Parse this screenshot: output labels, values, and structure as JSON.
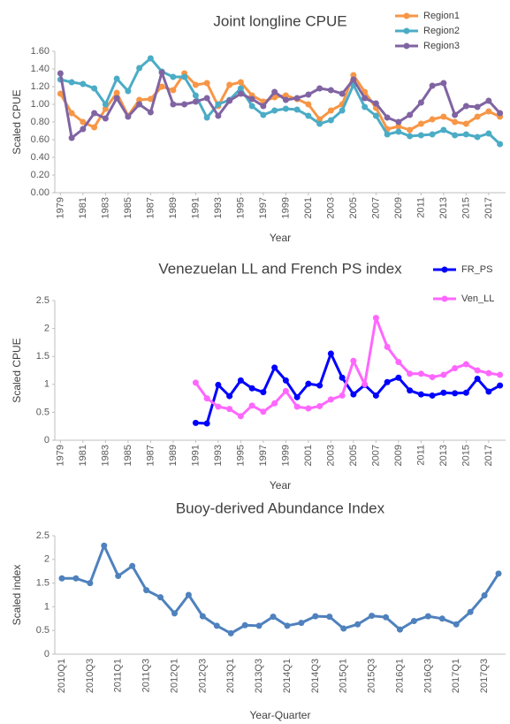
{
  "chart_data": [
    {
      "type": "line",
      "title": "Joint longline CPUE",
      "x_label": "Year",
      "y_label": "Scaled CPUE",
      "x": [
        1979,
        1980,
        1981,
        1982,
        1983,
        1984,
        1985,
        1986,
        1987,
        1988,
        1989,
        1990,
        1991,
        1992,
        1993,
        1994,
        1995,
        1996,
        1997,
        1998,
        1999,
        2000,
        2001,
        2002,
        2003,
        2004,
        2005,
        2006,
        2007,
        2008,
        2009,
        2010,
        2011,
        2012,
        2013,
        2014,
        2015,
        2016,
        2017,
        2018
      ],
      "xlim": [
        1978.5,
        2018.5
      ],
      "xticks": [
        1979,
        1981,
        1983,
        1985,
        1987,
        1989,
        1991,
        1993,
        1995,
        1997,
        1999,
        2001,
        2003,
        2005,
        2007,
        2009,
        2011,
        2013,
        2015,
        2017
      ],
      "ylim": [
        0,
        1.6
      ],
      "yticks": [
        {
          "value": 0,
          "label": "0.00"
        },
        {
          "value": 0.2,
          "label": "0.20"
        },
        {
          "value": 0.4,
          "label": "0.40"
        },
        {
          "value": 0.6,
          "label": "0.60"
        },
        {
          "value": 0.8,
          "label": "0.80"
        },
        {
          "value": 1,
          "label": "1.00"
        },
        {
          "value": 1.2,
          "label": "1.20"
        },
        {
          "value": 1.4,
          "label": "1.40"
        },
        {
          "value": 1.6,
          "label": "1.60"
        }
      ],
      "legend": "top-right",
      "series": [
        {
          "name": "Region1",
          "color": "#f79646",
          "values": [
            1.12,
            0.9,
            0.8,
            0.74,
            0.95,
            1.13,
            0.87,
            1.05,
            1.06,
            1.2,
            1.16,
            1.35,
            1.22,
            1.24,
            0.98,
            1.22,
            1.25,
            1.1,
            1.03,
            1.08,
            1.1,
            1.06,
            1.0,
            0.83,
            0.93,
            1.0,
            1.33,
            1.14,
            0.96,
            0.72,
            0.75,
            0.71,
            0.78,
            0.83,
            0.86,
            0.8,
            0.78,
            0.86,
            0.92,
            0.86
          ]
        },
        {
          "name": "Region2",
          "color": "#4bacc6",
          "values": [
            1.28,
            1.25,
            1.23,
            1.18,
            1.0,
            1.29,
            1.15,
            1.41,
            1.52,
            1.37,
            1.31,
            1.31,
            1.1,
            0.85,
            1.0,
            1.05,
            1.18,
            0.98,
            0.88,
            0.93,
            0.95,
            0.94,
            0.87,
            0.78,
            0.82,
            0.93,
            1.22,
            0.97,
            0.87,
            0.66,
            0.69,
            0.64,
            0.65,
            0.66,
            0.71,
            0.65,
            0.66,
            0.63,
            0.67,
            0.55
          ]
        },
        {
          "name": "Region3",
          "color": "#8064a2",
          "values": [
            1.35,
            0.62,
            0.72,
            0.9,
            0.84,
            1.07,
            0.86,
            1.0,
            0.91,
            1.36,
            1.0,
            1.0,
            1.03,
            1.07,
            0.87,
            1.04,
            1.12,
            1.06,
            0.98,
            1.14,
            1.05,
            1.07,
            1.11,
            1.18,
            1.16,
            1.12,
            1.28,
            1.07,
            1.01,
            0.85,
            0.8,
            0.88,
            1.02,
            1.21,
            1.24,
            0.88,
            0.98,
            0.97,
            1.04,
            0.9
          ]
        }
      ]
    },
    {
      "type": "line",
      "title": "Venezuelan LL and French PS index",
      "x_label": "Year",
      "y_label": "Scaled CPUE",
      "x": [
        1979,
        1980,
        1981,
        1982,
        1983,
        1984,
        1985,
        1986,
        1987,
        1988,
        1989,
        1990,
        1991,
        1992,
        1993,
        1994,
        1995,
        1996,
        1997,
        1998,
        1999,
        2000,
        2001,
        2002,
        2003,
        2004,
        2005,
        2006,
        2007,
        2008,
        2009,
        2010,
        2011,
        2012,
        2013,
        2014,
        2015,
        2016,
        2017,
        2018
      ],
      "xlim": [
        1978.5,
        2018.5
      ],
      "xticks": [
        1979,
        1981,
        1983,
        1985,
        1987,
        1989,
        1991,
        1993,
        1995,
        1997,
        1999,
        2001,
        2003,
        2005,
        2007,
        2009,
        2011,
        2013,
        2015,
        2017
      ],
      "ylim": [
        0,
        2.5
      ],
      "yticks": [
        0,
        0.5,
        1,
        1.5,
        2,
        2.5
      ],
      "legend": "top-right",
      "series": [
        {
          "name": "FR_PS",
          "color": "#0000ff",
          "values": [
            null,
            null,
            null,
            null,
            null,
            null,
            null,
            null,
            null,
            null,
            null,
            null,
            0.31,
            0.3,
            0.99,
            0.79,
            1.07,
            0.93,
            0.86,
            1.3,
            1.07,
            0.77,
            1.01,
            0.98,
            1.55,
            1.12,
            0.82,
            0.99,
            0.8,
            1.04,
            1.12,
            0.89,
            0.82,
            0.8,
            0.85,
            0.84,
            0.85,
            1.1,
            0.87,
            0.98
          ]
        },
        {
          "name": "Ven_LL",
          "color": "#ff66ff",
          "values": [
            null,
            null,
            null,
            null,
            null,
            null,
            null,
            null,
            null,
            null,
            null,
            null,
            1.03,
            0.75,
            0.6,
            0.56,
            0.43,
            0.62,
            0.51,
            0.66,
            0.88,
            0.6,
            0.57,
            0.61,
            0.73,
            0.8,
            1.42,
            1.0,
            2.19,
            1.67,
            1.4,
            1.19,
            1.19,
            1.13,
            1.17,
            1.29,
            1.36,
            1.25,
            1.2,
            1.17
          ]
        }
      ]
    },
    {
      "type": "line",
      "title": "Buoy-derived Abundance Index",
      "x_label": "Year-Quarter",
      "y_label": "Scaled index",
      "categories": [
        "2010Q1",
        null,
        "2010Q3",
        null,
        "2011Q1",
        null,
        "2011Q3",
        null,
        "2012Q1",
        null,
        "2012Q3",
        null,
        "2013Q1",
        null,
        "2013Q3",
        null,
        "2014Q1",
        null,
        "2014Q3",
        null,
        "2015Q1",
        null,
        "2015Q3",
        null,
        "2016Q1",
        null,
        "2016Q3",
        null,
        "2017Q1",
        null,
        "2017Q3",
        null
      ],
      "values": [
        1.6,
        1.6,
        1.5,
        2.29,
        1.65,
        1.86,
        1.35,
        1.2,
        0.86,
        1.25,
        0.8,
        0.6,
        0.44,
        0.61,
        0.6,
        0.79,
        0.6,
        0.66,
        0.8,
        0.79,
        0.54,
        0.63,
        0.81,
        0.78,
        0.52,
        0.7,
        0.8,
        0.75,
        0.63,
        0.89,
        1.24,
        1.7
      ],
      "color": "#4f81bd",
      "ylim": [
        0,
        2.5
      ],
      "yticks": [
        0,
        0.5,
        1,
        1.5,
        2,
        2.5
      ]
    }
  ]
}
